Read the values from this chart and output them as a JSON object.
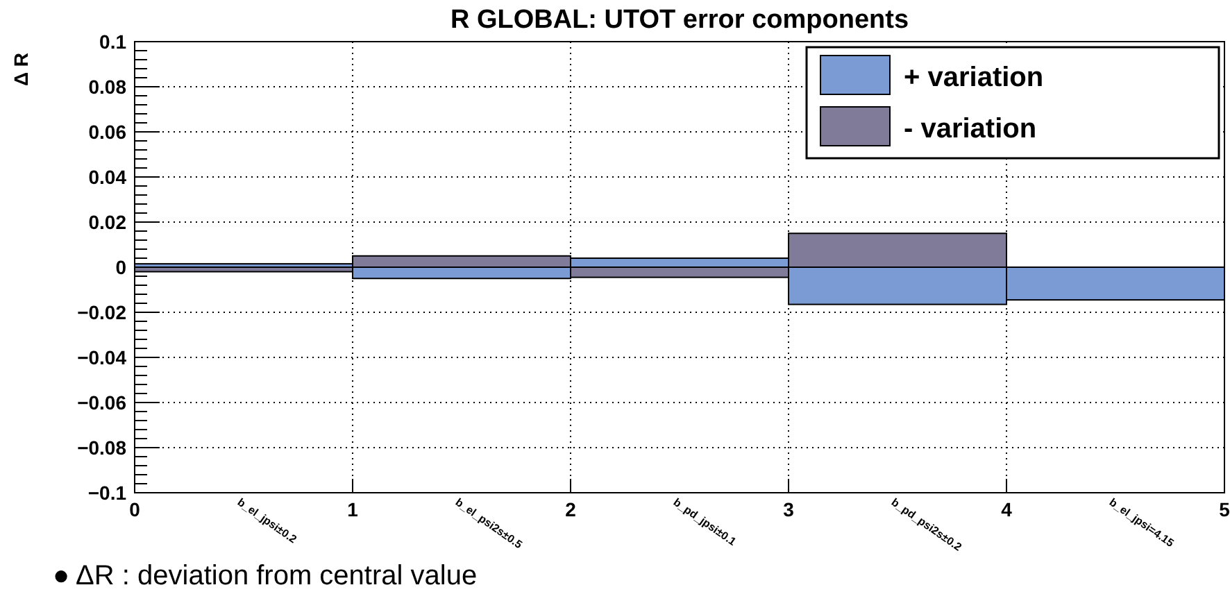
{
  "chart_data": {
    "type": "bar",
    "title": "R GLOBAL: UTOT error components",
    "ylabel": "Δ R",
    "x": [
      0.5,
      1.5,
      2.5,
      3.5,
      4.5
    ],
    "stacked": true,
    "series": [
      {
        "name": "+ variation",
        "color": "#7b9bd4",
        "values": [
          0.0015,
          -0.005,
          0.004,
          -0.0165,
          -0.0145
        ]
      },
      {
        "name": "- variation",
        "color": "#7f7b98",
        "values": [
          -0.002,
          0.005,
          -0.0045,
          0.015,
          0
        ]
      }
    ],
    "xlim": [
      0,
      5
    ],
    "xticks": [
      0,
      1,
      2,
      3,
      4,
      5
    ],
    "ylim": [
      -0.1,
      0.1
    ],
    "yticks": [
      {
        "value": -0.1,
        "label": "−0.1"
      },
      {
        "value": -0.08,
        "label": "−0.08"
      },
      {
        "value": -0.06,
        "label": "−0.06"
      },
      {
        "value": -0.04,
        "label": "−0.04"
      },
      {
        "value": -0.02,
        "label": "−0.02"
      },
      0,
      0.02,
      0.04,
      0.06,
      0.08,
      0.1
    ],
    "grid": true,
    "legend": "top right",
    "annotations": [
      "b_el_jpsi±0.2",
      "b_el_psi2s±0.5",
      "b_pd_jpsi±0.1",
      "b_pd_psi2s±0.2",
      "b_el_jpsi=4.15",
      "● ΔR : deviation from central value"
    ]
  }
}
